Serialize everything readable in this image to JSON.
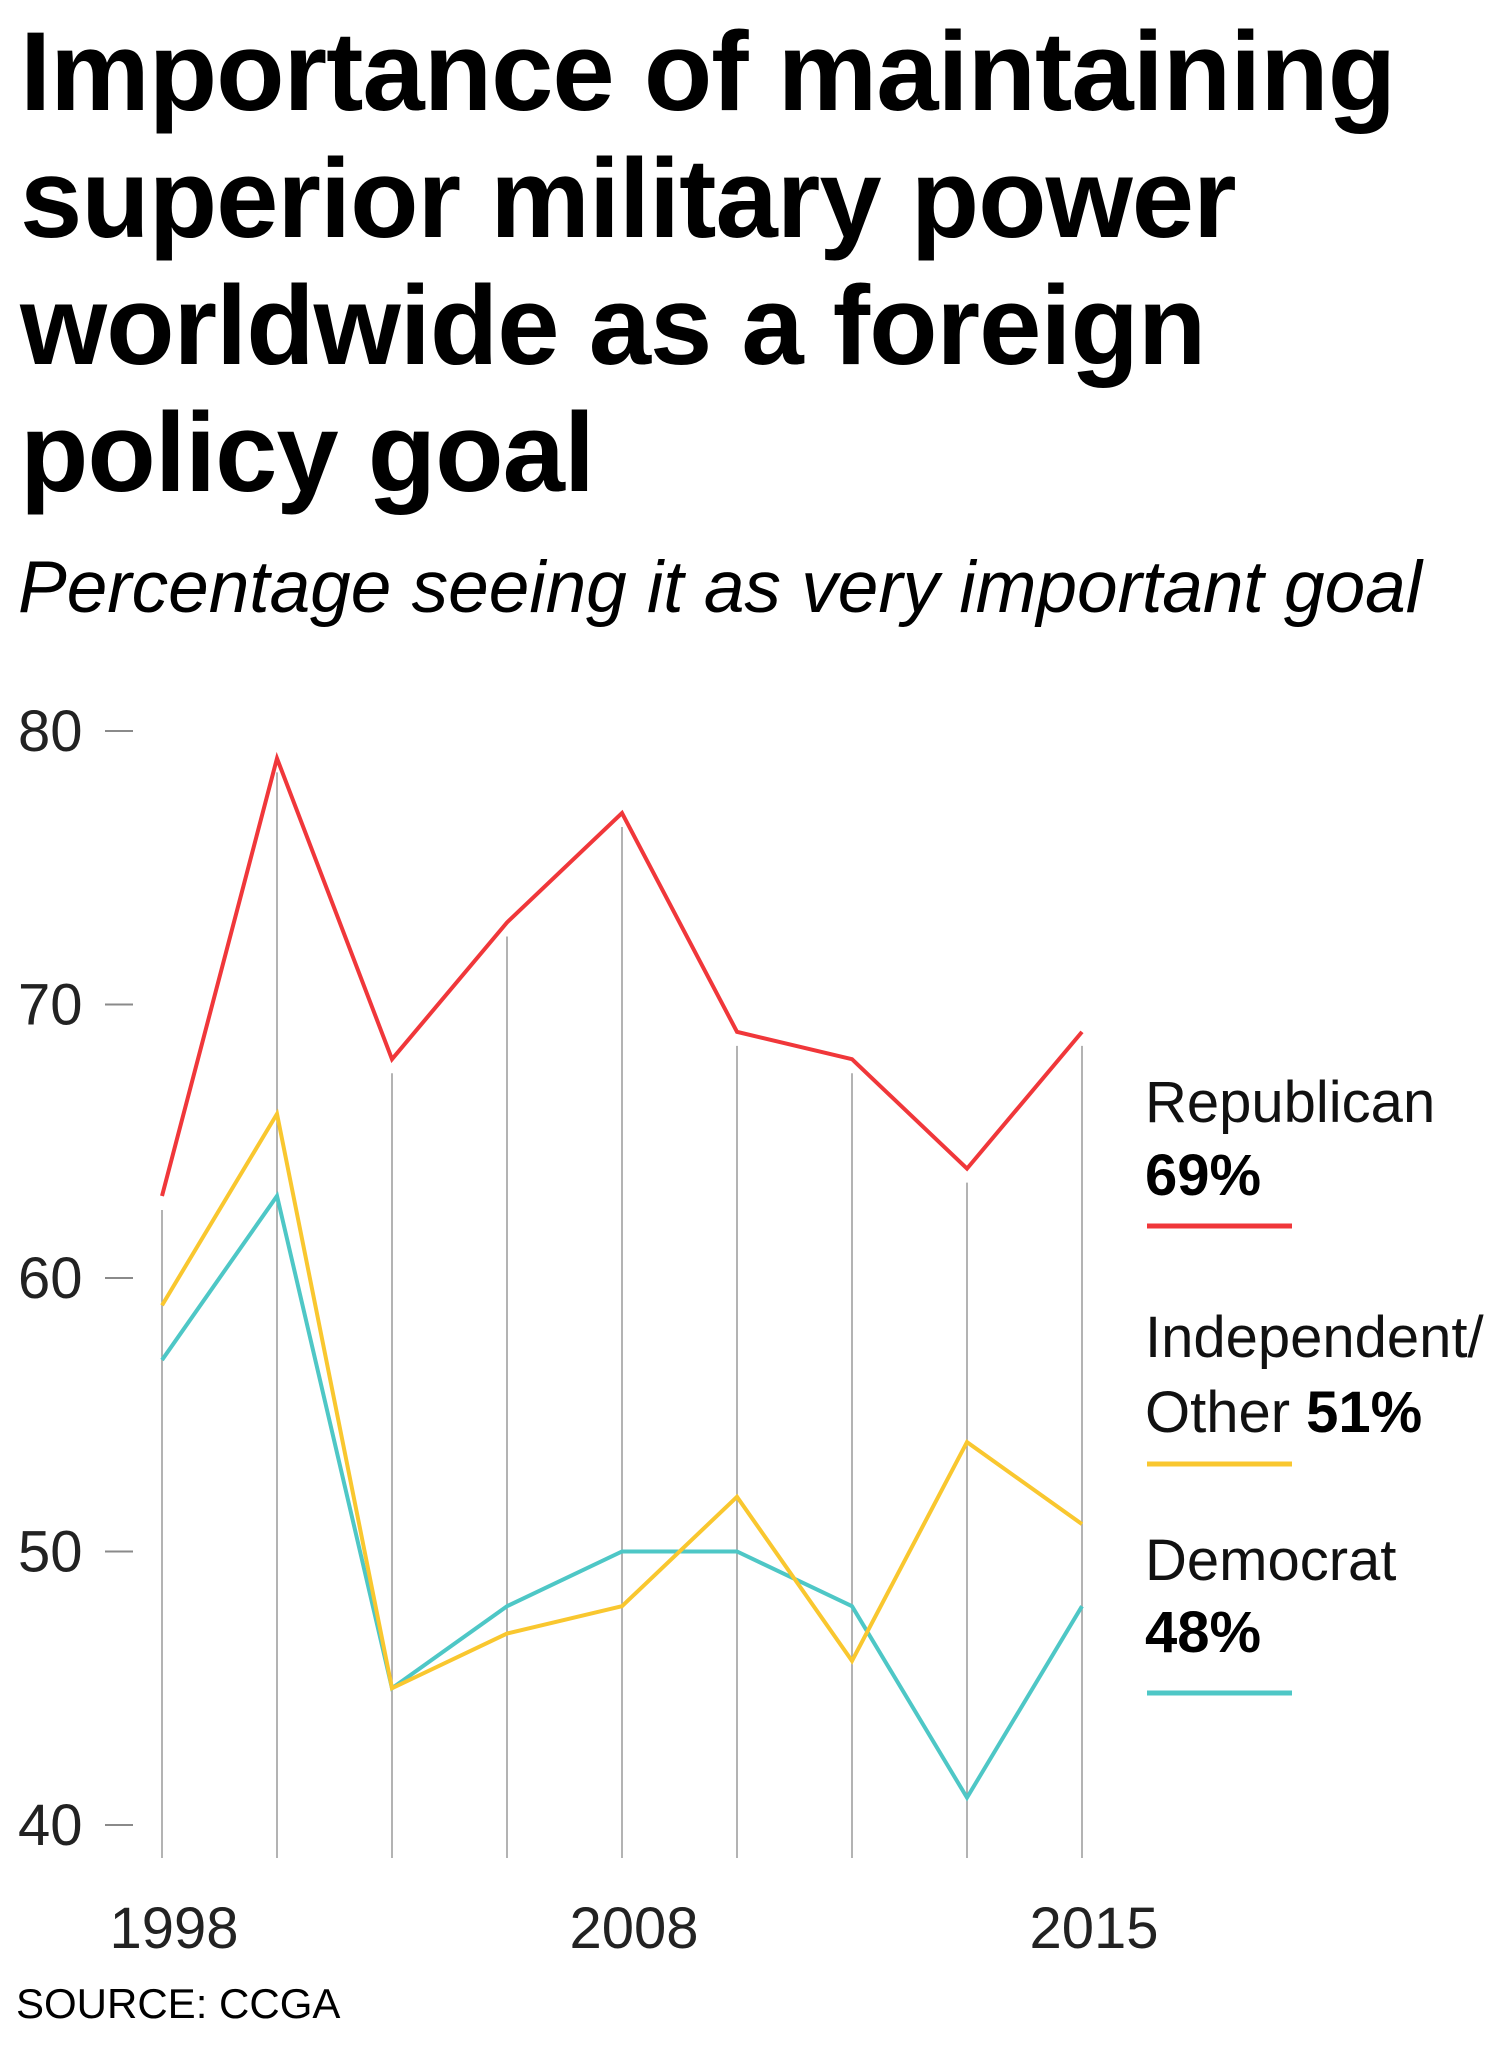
{
  "title": "Importance of maintaining superior military power worldwide as a foreign policy goal",
  "subtitle": "Percentage seeing it as very important goal",
  "source": "SOURCE: CCGA",
  "chart_data": {
    "type": "line",
    "title": "Importance of maintaining superior military power worldwide as a foreign policy goal",
    "subtitle": "Percentage seeing it as very important goal",
    "xlabel": "",
    "ylabel": "",
    "x_tick_labels": [
      "1998",
      "2008",
      "2015"
    ],
    "y_ticks": [
      80,
      70,
      60,
      50,
      40
    ],
    "ylim": [
      40,
      80
    ],
    "grid": "vertical lines at each data point",
    "legend_placement": "right",
    "series": [
      {
        "name": "Republican",
        "final_label": "69%",
        "color": "#f0373a",
        "values": [
          63,
          79,
          68,
          73,
          77,
          69,
          68,
          64,
          69
        ]
      },
      {
        "name": "Independent/ Other",
        "name_lines": [
          "Independent/",
          "Other"
        ],
        "final_label": "51%",
        "color": "#f9c72f",
        "values": [
          59,
          66,
          45,
          47,
          48,
          52,
          46,
          54,
          51
        ]
      },
      {
        "name": "Democrat",
        "final_label": "48%",
        "color": "#4ec7c6",
        "values": [
          57,
          63,
          45,
          48,
          50,
          50,
          48,
          41,
          48
        ]
      }
    ],
    "gridline_color": "#9a9a9a"
  }
}
